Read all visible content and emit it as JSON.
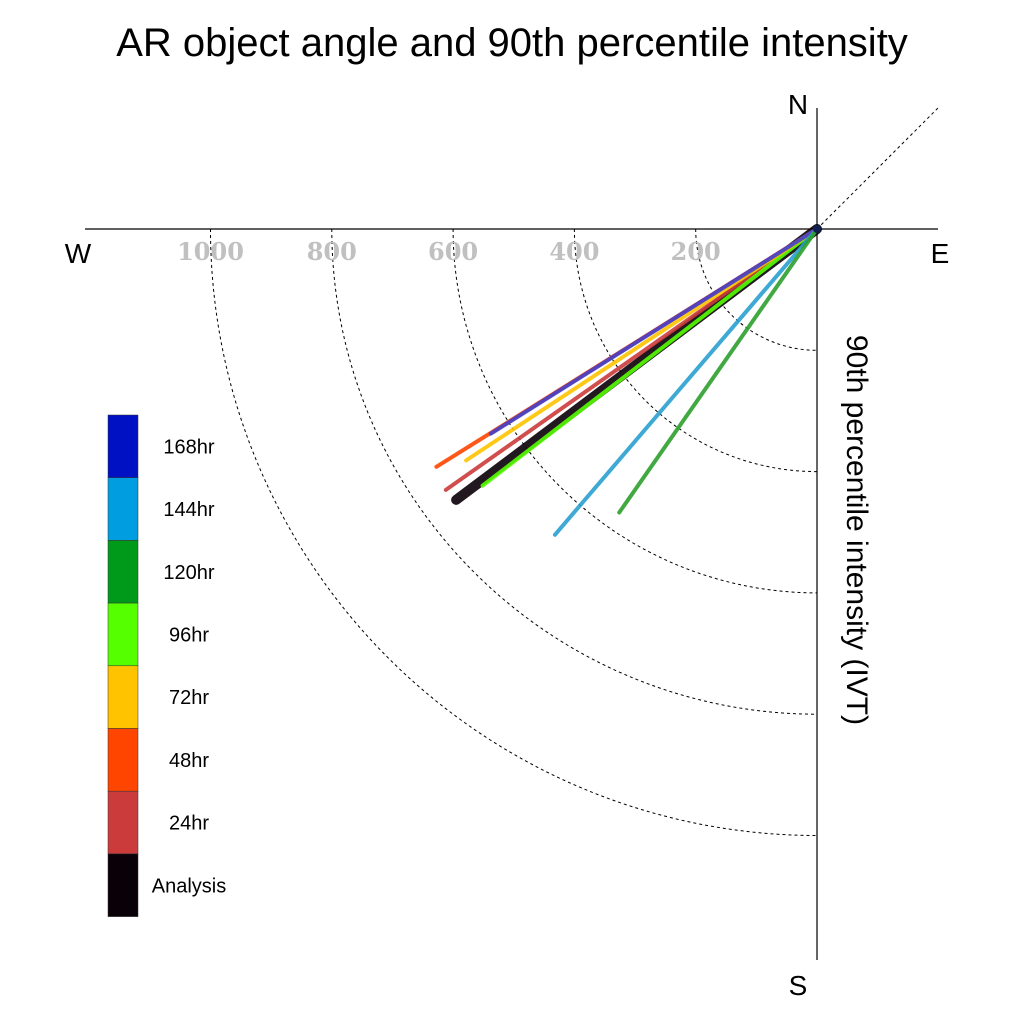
{
  "chart_data": {
    "type": "polar-vector",
    "title": "AR object angle and 90th percentile intensity",
    "radial_axis_label": "90th percentile intensity (IVT)",
    "compass": {
      "north": "N",
      "south": "S",
      "east": "E",
      "west": "W"
    },
    "radial_ticks": [
      200,
      400,
      600,
      800,
      1000
    ],
    "radial_tick_labels": [
      "200",
      "400",
      "600",
      "800",
      "1000"
    ],
    "rmax": 1200,
    "angle_convention": "degrees, 0 = East, counter-clockwise positive",
    "series": [
      {
        "name": "Analysis",
        "color": "#0a0008",
        "angle_deg": 216.9,
        "intensity": 744
      },
      {
        "name": "24hr",
        "color": "#cc3b3b",
        "angle_deg": 215.1,
        "intensity": 748
      },
      {
        "name": "96hr",
        "color": "#55ff00",
        "angle_deg": 217.5,
        "intensity": 695
      },
      {
        "name": "48hr",
        "color": "#ff4500",
        "angle_deg": 212.0,
        "intensity": 740
      },
      {
        "name": "72hr",
        "color": "#ffc300",
        "angle_deg": 213.4,
        "intensity": 693
      },
      {
        "name": "168hr",
        "color": "#4040cc",
        "angle_deg": 212.1,
        "intensity": 635
      },
      {
        "name": "144hr",
        "color": "#2aa0d0",
        "angle_deg": 229.4,
        "intensity": 664
      },
      {
        "name": "120hr",
        "color": "#2ea02e",
        "angle_deg": 235.1,
        "intensity": 570
      }
    ],
    "legend": {
      "placement": "left",
      "entries": [
        {
          "label": "168hr",
          "color": "#0011c4"
        },
        {
          "label": "144hr",
          "color": "#009ee0"
        },
        {
          "label": "120hr",
          "color": "#009a1a"
        },
        {
          "label": "96hr",
          "color": "#55ff00"
        },
        {
          "label": "72hr",
          "color": "#ffc300"
        },
        {
          "label": "48hr",
          "color": "#ff4500"
        },
        {
          "label": "24hr",
          "color": "#cc3b3b"
        },
        {
          "label": "Analysis",
          "color": "#0a0008"
        }
      ]
    }
  }
}
